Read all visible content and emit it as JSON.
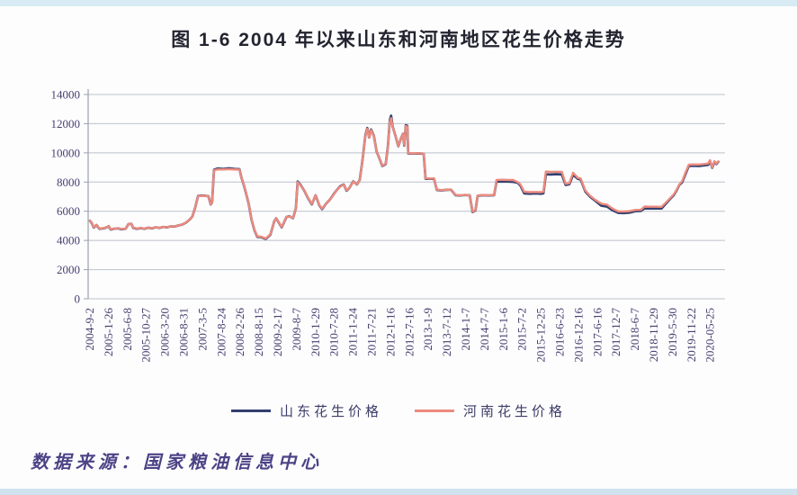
{
  "page": {
    "title": "图 1-6  2004 年以来山东和河南地区花生价格走势",
    "source_note": "数据来源：国家粮油信息中心"
  },
  "chart_data": {
    "type": "line",
    "title": "图 1-6  2004 年以来山东和河南地区花生价格走势",
    "xlabel": "",
    "ylabel": "",
    "ylim": [
      0,
      14000
    ],
    "yticks": [
      0,
      2000,
      4000,
      6000,
      8000,
      10000,
      12000,
      14000
    ],
    "grid": "horizontal",
    "legend_position": "bottom",
    "x_tick_labels": [
      "2004-9-2",
      "2005-1-26",
      "2005-6-8",
      "2005-10-27",
      "2006-3-20",
      "2006-8-31",
      "2007-3-5",
      "2007-8-24",
      "2008-2-26",
      "2008-8-15",
      "2009-2-17",
      "2009-8-7",
      "2010-1-29",
      "2010-7-28",
      "2011-1-24",
      "2011-7-21",
      "2012-1-16",
      "2012-7-16",
      "2013-1-9",
      "2013-7-12",
      "2014-1-7",
      "2014-7-7",
      "2015-1-6",
      "2015-7-2",
      "2015-12-25",
      "2016-6-23",
      "2016-12-16",
      "2017-6-16",
      "2017-12-7",
      "2018-6-7",
      "2018-11-29",
      "2019-5-30",
      "2019-11-22",
      "2020-05-25"
    ],
    "series": [
      {
        "name": "山东花生价格",
        "color": "#33406f"
      },
      {
        "name": "河南花生价格",
        "color": "#ed8b7e"
      }
    ],
    "points_format": "[x_tick_index, shandong_price, henan_price]",
    "points": [
      [
        0,
        5350,
        5350
      ],
      [
        0.1,
        5180,
        5200
      ],
      [
        0.2,
        4880,
        4900
      ],
      [
        0.35,
        5060,
        5060
      ],
      [
        0.5,
        4800,
        4820
      ],
      [
        0.7,
        4820,
        4840
      ],
      [
        0.9,
        4900,
        4900
      ],
      [
        1.0,
        4980,
        4980
      ],
      [
        1.1,
        4750,
        4770
      ],
      [
        1.3,
        4800,
        4800
      ],
      [
        1.5,
        4830,
        4840
      ],
      [
        1.7,
        4760,
        4780
      ],
      [
        1.9,
        4800,
        4800
      ],
      [
        2.05,
        5120,
        5120
      ],
      [
        2.2,
        5140,
        5130
      ],
      [
        2.3,
        4860,
        4880
      ],
      [
        2.5,
        4800,
        4820
      ],
      [
        2.7,
        4840,
        4850
      ],
      [
        2.9,
        4800,
        4810
      ],
      [
        3.1,
        4870,
        4870
      ],
      [
        3.3,
        4820,
        4830
      ],
      [
        3.5,
        4900,
        4900
      ],
      [
        3.7,
        4860,
        4870
      ],
      [
        3.9,
        4920,
        4920
      ],
      [
        4.1,
        4900,
        4910
      ],
      [
        4.3,
        4960,
        4960
      ],
      [
        4.5,
        4950,
        4960
      ],
      [
        4.7,
        5020,
        5020
      ],
      [
        4.9,
        5080,
        5090
      ],
      [
        5.1,
        5220,
        5230
      ],
      [
        5.3,
        5420,
        5420
      ],
      [
        5.45,
        5650,
        5660
      ],
      [
        5.6,
        6250,
        6250
      ],
      [
        5.75,
        7050,
        7040
      ],
      [
        6.0,
        7080,
        7070
      ],
      [
        6.3,
        7030,
        7030
      ],
      [
        6.42,
        6470,
        6480
      ],
      [
        6.5,
        6620,
        6620
      ],
      [
        6.6,
        8840,
        8800
      ],
      [
        6.8,
        8930,
        8870
      ],
      [
        7.1,
        8900,
        8860
      ],
      [
        7.4,
        8940,
        8880
      ],
      [
        7.7,
        8900,
        8860
      ],
      [
        7.95,
        8880,
        8850
      ],
      [
        8.05,
        8350,
        8350
      ],
      [
        8.2,
        7720,
        7740
      ],
      [
        8.35,
        7000,
        7020
      ],
      [
        8.45,
        6470,
        6490
      ],
      [
        8.6,
        5400,
        5430
      ],
      [
        8.75,
        4700,
        4730
      ],
      [
        8.9,
        4250,
        4280
      ],
      [
        9.1,
        4230,
        4260
      ],
      [
        9.35,
        4100,
        4130
      ],
      [
        9.6,
        4400,
        4420
      ],
      [
        9.8,
        5300,
        5300
      ],
      [
        9.9,
        5520,
        5520
      ],
      [
        10.2,
        4900,
        4920
      ],
      [
        10.45,
        5600,
        5620
      ],
      [
        10.6,
        5660,
        5650
      ],
      [
        10.8,
        5520,
        5530
      ],
      [
        10.95,
        6200,
        6200
      ],
      [
        11.05,
        8040,
        8000
      ],
      [
        11.2,
        7800,
        7780
      ],
      [
        11.4,
        7410,
        7420
      ],
      [
        11.6,
        6900,
        6920
      ],
      [
        11.8,
        6470,
        6500
      ],
      [
        12.0,
        7090,
        7090
      ],
      [
        12.2,
        6400,
        6420
      ],
      [
        12.35,
        6150,
        6180
      ],
      [
        12.55,
        6500,
        6500
      ],
      [
        12.75,
        6780,
        6780
      ],
      [
        12.95,
        7150,
        7130
      ],
      [
        13.1,
        7410,
        7400
      ],
      [
        13.3,
        7700,
        7680
      ],
      [
        13.5,
        7830,
        7820
      ],
      [
        13.65,
        7410,
        7430
      ],
      [
        13.8,
        7600,
        7610
      ],
      [
        14.0,
        8040,
        8030
      ],
      [
        14.2,
        7830,
        7840
      ],
      [
        14.35,
        8140,
        8130
      ],
      [
        14.5,
        9500,
        9480
      ],
      [
        14.65,
        11200,
        11150
      ],
      [
        14.75,
        11700,
        11650
      ],
      [
        14.85,
        11050,
        11050
      ],
      [
        14.95,
        11600,
        11560
      ],
      [
        15.1,
        11170,
        11150
      ],
      [
        15.25,
        10100,
        10120
      ],
      [
        15.4,
        9600,
        9620
      ],
      [
        15.55,
        9100,
        9130
      ],
      [
        15.73,
        9230,
        9250
      ],
      [
        15.85,
        10500,
        10480
      ],
      [
        15.95,
        12250,
        12150
      ],
      [
        16.02,
        12550,
        12380
      ],
      [
        16.1,
        11800,
        11780
      ],
      [
        16.25,
        11170,
        11170
      ],
      [
        16.4,
        10460,
        10480
      ],
      [
        16.55,
        11000,
        10990
      ],
      [
        16.65,
        11300,
        11280
      ],
      [
        16.72,
        10500,
        10520
      ],
      [
        16.8,
        11900,
        11850
      ],
      [
        16.88,
        11850,
        11800
      ],
      [
        16.93,
        9960,
        9980
      ],
      [
        17.2,
        9950,
        9960
      ],
      [
        17.5,
        9960,
        9970
      ],
      [
        17.75,
        9940,
        9950
      ],
      [
        17.85,
        8230,
        8260
      ],
      [
        18.1,
        8220,
        8240
      ],
      [
        18.3,
        8230,
        8250
      ],
      [
        18.45,
        7460,
        7480
      ],
      [
        18.7,
        7430,
        7450
      ],
      [
        18.95,
        7460,
        7470
      ],
      [
        19.2,
        7480,
        7490
      ],
      [
        19.45,
        7100,
        7120
      ],
      [
        19.7,
        7080,
        7100
      ],
      [
        19.95,
        7110,
        7120
      ],
      [
        20.2,
        7090,
        7100
      ],
      [
        20.35,
        5950,
        5980
      ],
      [
        20.5,
        6050,
        6070
      ],
      [
        20.62,
        7060,
        7080
      ],
      [
        20.9,
        7100,
        7110
      ],
      [
        21.2,
        7080,
        7100
      ],
      [
        21.5,
        7100,
        7110
      ],
      [
        21.62,
        8030,
        8150
      ],
      [
        21.9,
        8040,
        8160
      ],
      [
        22.2,
        8030,
        8150
      ],
      [
        22.5,
        8020,
        8140
      ],
      [
        22.75,
        7950,
        8000
      ],
      [
        22.9,
        7750,
        7830
      ],
      [
        23.1,
        7220,
        7330
      ],
      [
        23.4,
        7200,
        7310
      ],
      [
        23.7,
        7220,
        7320
      ],
      [
        24.0,
        7200,
        7310
      ],
      [
        24.12,
        7230,
        7330
      ],
      [
        24.25,
        8530,
        8720
      ],
      [
        24.5,
        8520,
        8700
      ],
      [
        24.8,
        8540,
        8710
      ],
      [
        25.1,
        8520,
        8700
      ],
      [
        25.3,
        7800,
        7880
      ],
      [
        25.5,
        7850,
        7920
      ],
      [
        25.7,
        8500,
        8640
      ],
      [
        25.95,
        8220,
        8280
      ],
      [
        26.1,
        8180,
        8250
      ],
      [
        26.35,
        7350,
        7420
      ],
      [
        26.6,
        7000,
        7060
      ],
      [
        26.9,
        6700,
        6760
      ],
      [
        27.2,
        6380,
        6520
      ],
      [
        27.5,
        6320,
        6460
      ],
      [
        27.8,
        6060,
        6180
      ],
      [
        28.1,
        5890,
        5990
      ],
      [
        28.4,
        5870,
        5980
      ],
      [
        28.7,
        5900,
        6010
      ],
      [
        29.0,
        6000,
        6090
      ],
      [
        29.3,
        6020,
        6100
      ],
      [
        29.5,
        6200,
        6320
      ],
      [
        29.8,
        6190,
        6310
      ],
      [
        30.1,
        6200,
        6310
      ],
      [
        30.4,
        6190,
        6300
      ],
      [
        30.65,
        6550,
        6620
      ],
      [
        30.9,
        6900,
        6950
      ],
      [
        31.05,
        7100,
        7150
      ],
      [
        31.2,
        7420,
        7460
      ],
      [
        31.35,
        7800,
        7830
      ],
      [
        31.5,
        7980,
        8060
      ],
      [
        31.68,
        8560,
        8660
      ],
      [
        31.85,
        9100,
        9190
      ],
      [
        32.1,
        9120,
        9210
      ],
      [
        32.4,
        9100,
        9200
      ],
      [
        32.7,
        9150,
        9240
      ],
      [
        32.88,
        9180,
        9270
      ],
      [
        32.98,
        9450,
        9500
      ],
      [
        33.1,
        8980,
        9010
      ],
      [
        33.22,
        9380,
        9430
      ],
      [
        33.32,
        9240,
        9270
      ],
      [
        33.42,
        9390,
        9410
      ]
    ]
  },
  "colors": {
    "grid": "#bcc2cb",
    "axis": "#9aa2ac",
    "tick_label": "#474070",
    "title": "#23242f",
    "source_note": "#4c4386",
    "top_band": "#d8eaf3",
    "bottom_band": "#cfe2ee"
  }
}
